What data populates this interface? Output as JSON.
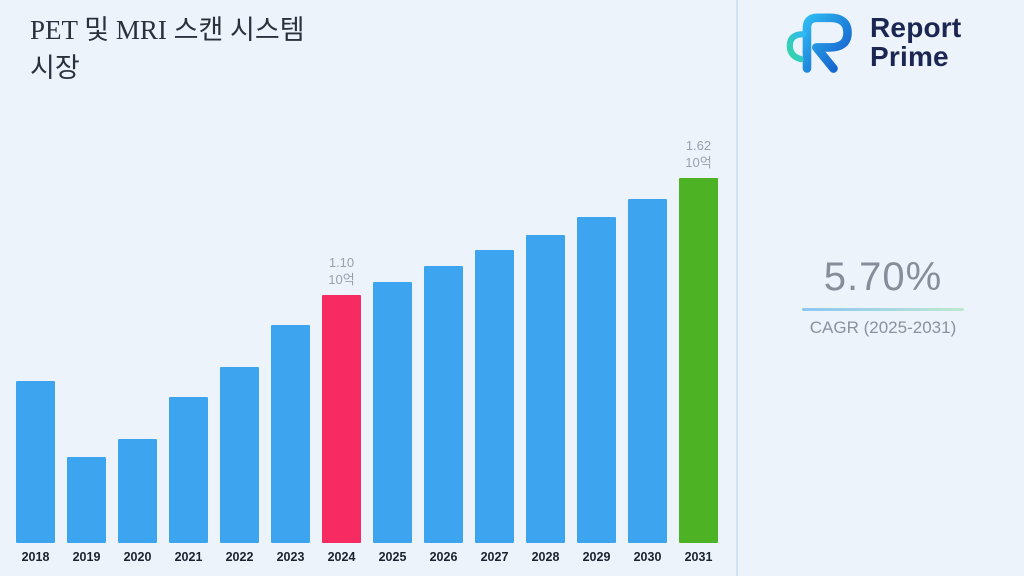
{
  "header": {
    "title_line1": "PET 및 MRI 스캔 시스템",
    "title_line2": "시장"
  },
  "logo": {
    "name_line1": "Report",
    "name_line2": "Prime"
  },
  "stats": {
    "cagr_value": "5.70%",
    "cagr_label": "CAGR (2025-2031)"
  },
  "chart_data": {
    "type": "bar",
    "title": "PET 및 MRI 스캔 시스템 시장",
    "categories": [
      "2018",
      "2019",
      "2020",
      "2021",
      "2022",
      "2023",
      "2024",
      "2025",
      "2026",
      "2027",
      "2028",
      "2029",
      "2030",
      "2031"
    ],
    "values": [
      0.72,
      0.38,
      0.46,
      0.65,
      0.78,
      0.97,
      1.1,
      1.16,
      1.23,
      1.3,
      1.37,
      1.45,
      1.53,
      1.62
    ],
    "unit": "10억",
    "ylim": [
      0,
      1.7
    ],
    "grid": false,
    "legend": "none",
    "annotations": [
      {
        "category": "2024",
        "lines": [
          "1.10",
          "10억"
        ]
      },
      {
        "category": "2031",
        "lines": [
          "1.62",
          "10억"
        ]
      }
    ],
    "bar_colors": {
      "default": "#3da5ef",
      "2024": "#f72a62",
      "2031": "#4db224"
    }
  }
}
